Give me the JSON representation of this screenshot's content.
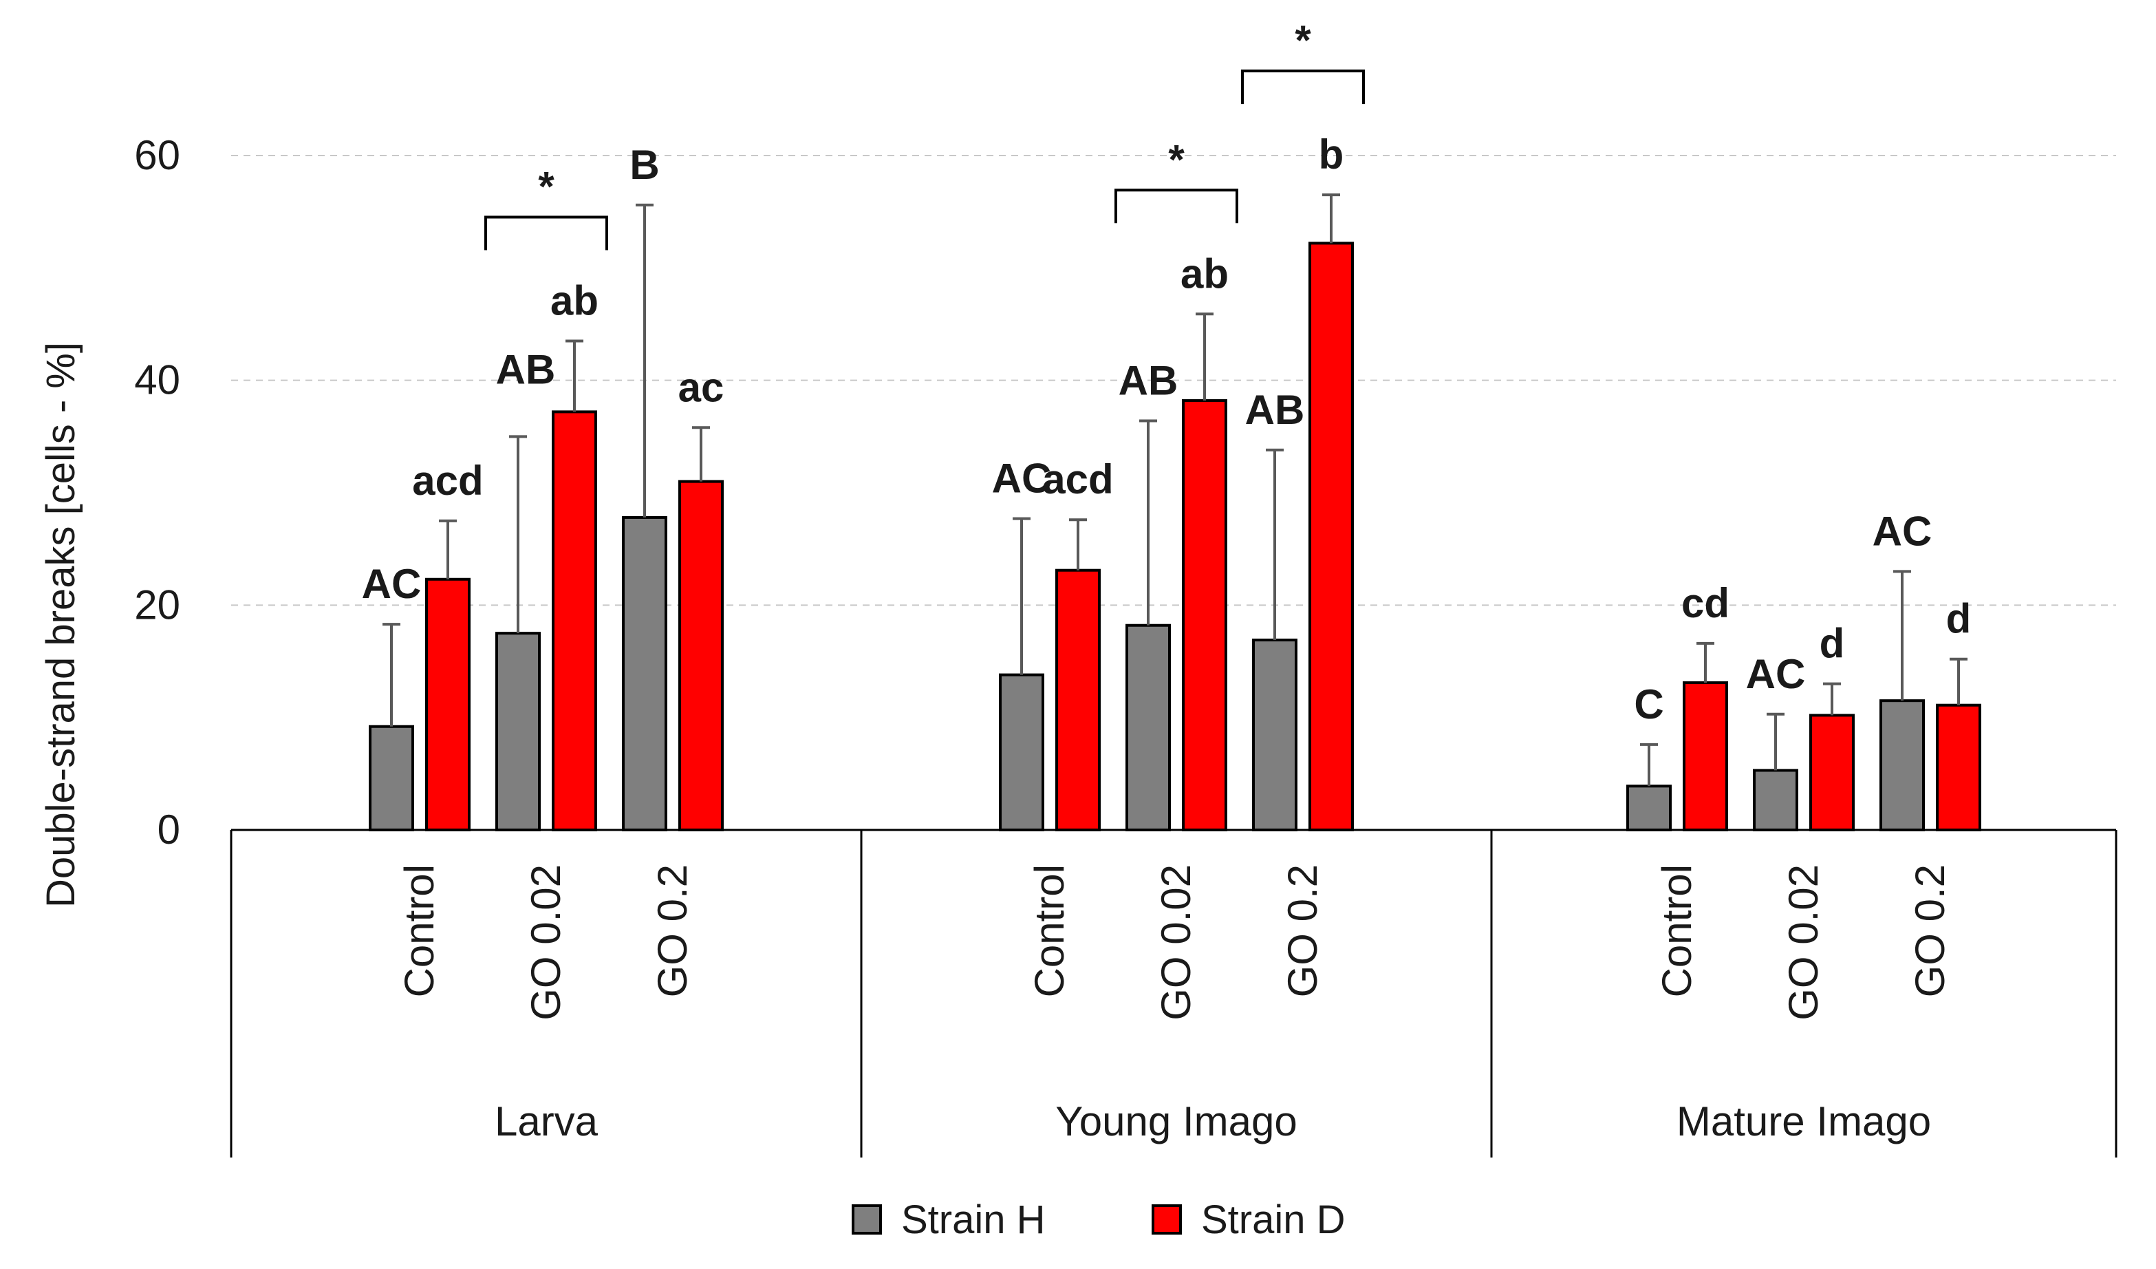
{
  "chart_data": {
    "type": "bar",
    "title": "",
    "xlabel": "",
    "ylabel": "Double-strand breaks   [cells - %]",
    "ylim": [
      0,
      60
    ],
    "yticks": [
      0,
      20,
      40,
      60
    ],
    "grid": true,
    "legend_position": "bottom",
    "groups": [
      {
        "name": "Larva",
        "categories": [
          "Control",
          "GO 0.02",
          "GO 0.2"
        ]
      },
      {
        "name": "Young Imago",
        "categories": [
          "Control",
          "GO 0.02",
          "GO 0.2"
        ]
      },
      {
        "name": "Mature Imago",
        "categories": [
          "Control",
          "GO 0.02",
          "GO 0.2"
        ]
      }
    ],
    "series": [
      {
        "name": "Strain H",
        "color": "#7f7f7f",
        "values": [
          9.2,
          17.5,
          27.8,
          13.8,
          18.2,
          16.9,
          3.9,
          5.3,
          11.5
        ],
        "errors": [
          9.1,
          17.5,
          27.8,
          13.9,
          18.2,
          16.9,
          3.7,
          5.0,
          11.5
        ],
        "labels": [
          "AC",
          "",
          "B",
          "AC",
          "AB",
          "AB",
          "C",
          "AC",
          "AC"
        ]
      },
      {
        "name": "Strain D",
        "color": "#ff0000",
        "values": [
          22.3,
          37.2,
          31.0,
          23.1,
          38.2,
          52.2,
          13.1,
          10.2,
          11.1
        ],
        "errors": [
          5.2,
          6.3,
          4.8,
          4.5,
          7.7,
          4.3,
          3.5,
          2.8,
          4.1
        ],
        "labels": [
          "acd",
          "ab",
          "ac",
          "acd",
          "ab",
          "b",
          "cd",
          "d",
          "d"
        ]
      }
    ],
    "extra_labels": [
      {
        "text": "AB",
        "group": 0,
        "category": 1
      }
    ],
    "significance_brackets": [
      {
        "group": 0,
        "category": 1,
        "text": "*"
      },
      {
        "group": 1,
        "category": 1,
        "text": "*"
      },
      {
        "group": 1,
        "category": 2,
        "text": "*"
      }
    ]
  }
}
